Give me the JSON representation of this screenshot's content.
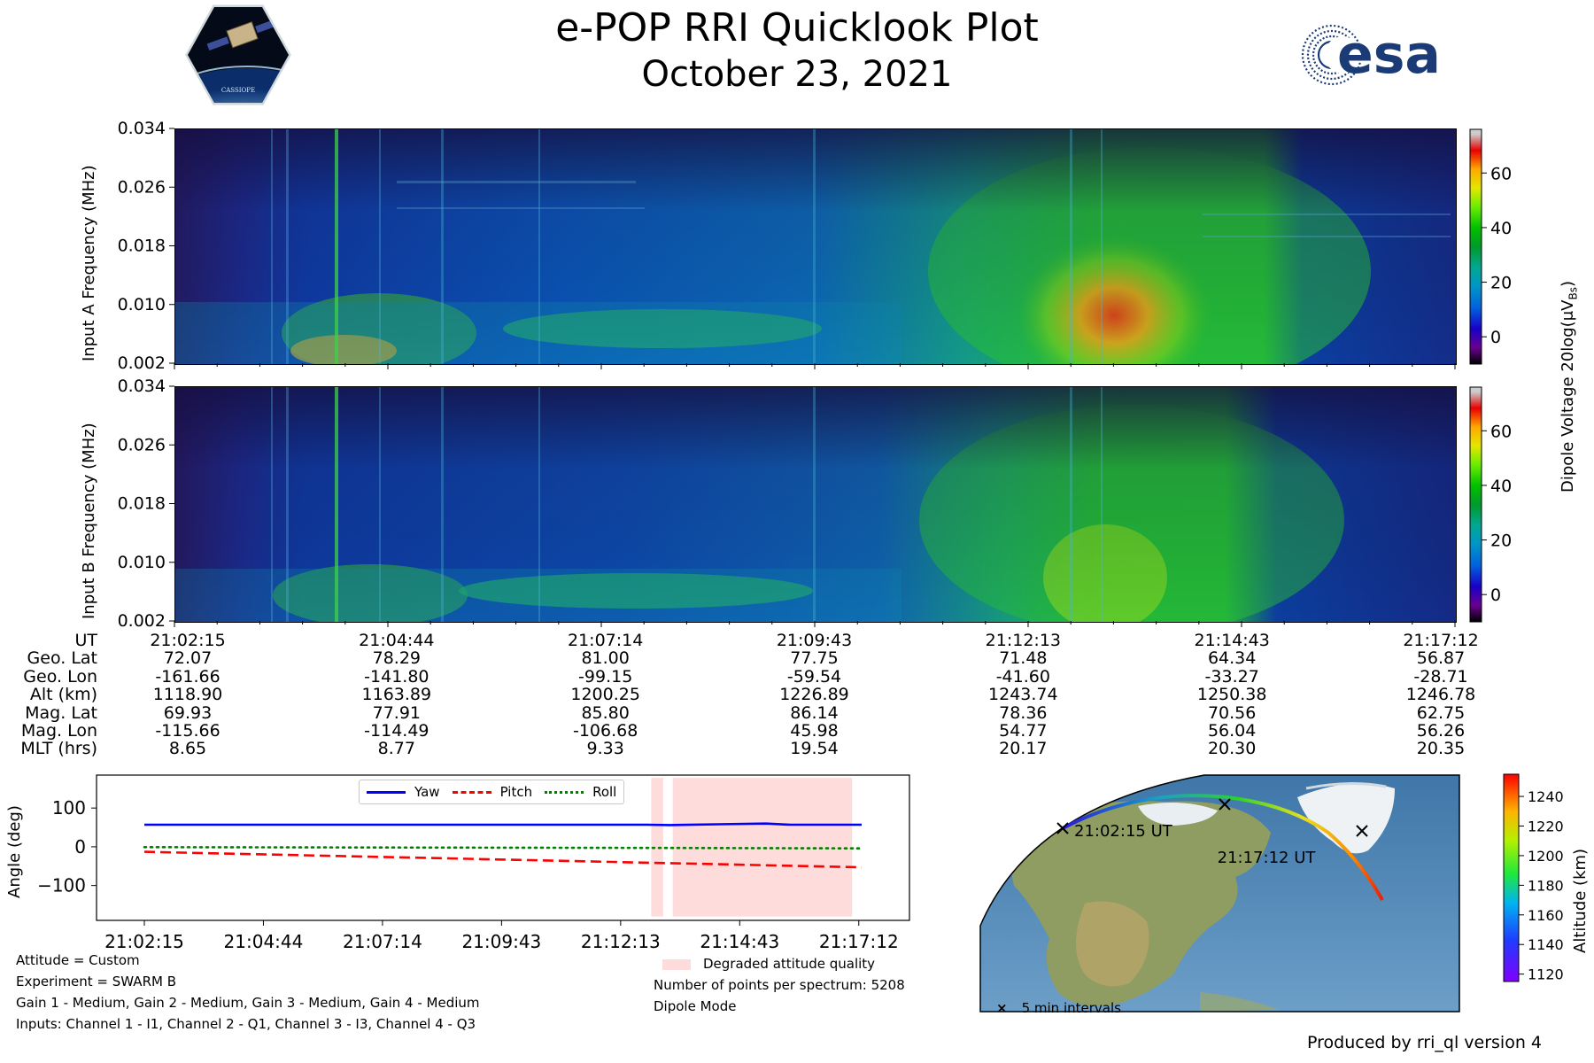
{
  "header": {
    "title": "e-POP RRI Quicklook Plot",
    "subtitle": "October 23, 2021",
    "logo_left_icon": "cassiope-satellite-hexagon-logo",
    "logo_left_text": "CASSIOPE",
    "logo_right_icon": "esa-logo",
    "logo_right_text": "esa"
  },
  "chart_data": [
    {
      "type": "heatmap",
      "ylabel": "Input A Frequency (MHz)",
      "y_ticks": [
        "0.034",
        "0.026",
        "0.018",
        "0.010",
        "0.002"
      ],
      "ylim": [
        0.002,
        0.034
      ],
      "colormap": "nipy_spectral",
      "clim": [
        -10,
        76
      ]
    },
    {
      "type": "heatmap",
      "ylabel": "Input B Frequency (MHz)",
      "y_ticks": [
        "0.034",
        "0.026",
        "0.018",
        "0.010",
        "0.002"
      ],
      "ylim": [
        0.002,
        0.034
      ],
      "colormap": "nipy_spectral",
      "clim": [
        -10,
        76
      ]
    },
    {
      "type": "line",
      "ylabel": "Angle (deg)",
      "y_ticks": [
        "100",
        "0",
        "−100"
      ],
      "ylim": [
        -190,
        185
      ],
      "x_ticks": [
        "21:02:15",
        "21:04:44",
        "21:07:14",
        "21:09:43",
        "21:12:13",
        "21:14:43",
        "21:17:12"
      ],
      "legend_position": "top-center",
      "series": [
        {
          "name": "Yaw",
          "color": "#0000ff",
          "style": "solid",
          "x_min": [
            0,
            2.5,
            5,
            7.5,
            10,
            10.5,
            11,
            12,
            13,
            13.5,
            15
          ],
          "values": [
            57,
            57,
            57,
            57,
            57,
            57,
            56,
            58,
            60,
            57,
            57
          ]
        },
        {
          "name": "Pitch",
          "color": "#ff0000",
          "style": "dashed",
          "x_min": [
            0,
            15
          ],
          "values": [
            -13,
            -53
          ]
        },
        {
          "name": "Roll",
          "color": "#008000",
          "style": "dotted",
          "x_min": [
            0,
            11,
            15
          ],
          "values": [
            -1,
            -3,
            -4
          ]
        }
      ],
      "degraded_quality": {
        "label": "Degraded attitude quality",
        "color": "#ffdcdc",
        "spans_min": [
          [
            10.6,
            10.85
          ],
          [
            11.05,
            14.8
          ]
        ]
      }
    },
    {
      "type": "map",
      "colorbar_label": "Altitude (km)",
      "colorbar_ticks": [
        "1240",
        "1220",
        "1200",
        "1180",
        "1160",
        "1140",
        "1120"
      ],
      "clim": [
        1115,
        1255
      ],
      "start_label": "21:02:15 UT",
      "end_label": "21:17:12 UT",
      "legend_label": "5 min intervals"
    }
  ],
  "colorbar": {
    "label": "Dipole Voltage 20log(μV",
    "label_sub": "Bs",
    "label_end": ")",
    "ticks": [
      "60",
      "40",
      "20",
      "0"
    ]
  },
  "ephemeris": {
    "labels": [
      "UT",
      "Geo. Lat",
      "Geo. Lon",
      "Alt (km)",
      "Mag. Lat",
      "Mag. Lon",
      "MLT (hrs)"
    ],
    "columns": [
      [
        "21:02:15",
        "72.07",
        "-161.66",
        "1118.90",
        "69.93",
        "-115.66",
        "8.65"
      ],
      [
        "21:04:44",
        "78.29",
        "-141.80",
        "1163.89",
        "77.91",
        "-114.49",
        "8.77"
      ],
      [
        "21:07:14",
        "81.00",
        "-99.15",
        "1200.25",
        "85.80",
        "-106.68",
        "9.33"
      ],
      [
        "21:09:43",
        "77.75",
        "-59.54",
        "1226.89",
        "86.14",
        "45.98",
        "19.54"
      ],
      [
        "21:12:13",
        "71.48",
        "-41.60",
        "1243.74",
        "78.36",
        "54.77",
        "20.17"
      ],
      [
        "21:14:43",
        "64.34",
        "-33.27",
        "1250.38",
        "70.56",
        "56.04",
        "20.30"
      ],
      [
        "21:17:12",
        "56.87",
        "-28.71",
        "1246.78",
        "62.75",
        "56.26",
        "20.35"
      ]
    ]
  },
  "notes": {
    "left": [
      "Attitude = Custom",
      "Experiment = SWARM B",
      "Gain 1 - Medium, Gain 2 - Medium, Gain 3 - Medium, Gain 4 - Medium",
      "Inputs: Channel 1 - I1, Channel 2 - Q1, Channel 3 - I3, Channel 4 - Q3"
    ],
    "right": [
      "Number of points per spectrum: 5208",
      "Dipole Mode"
    ],
    "footer": "Produced by rri_ql version 4"
  }
}
